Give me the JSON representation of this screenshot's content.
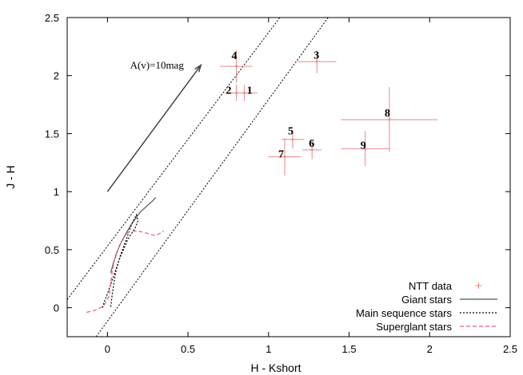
{
  "chart_data": {
    "type": "scatter",
    "title": "",
    "xlabel": "H - Kshort",
    "ylabel": "J - H",
    "xlim": [
      -0.25,
      2.5
    ],
    "ylim": [
      -0.25,
      2.5
    ],
    "x_ticks": [
      "0",
      "0.5",
      "1",
      "1.5",
      "2",
      "2.5"
    ],
    "y_ticks": [
      "0",
      "0.5",
      "1",
      "1.5",
      "2",
      "2.5"
    ],
    "grid": false,
    "legend_position": "bottom-right",
    "legend": [
      {
        "label": "NTT data",
        "style": "marker",
        "color": "#f08080"
      },
      {
        "label": "Giant stars",
        "style": "solid",
        "color": "#555555"
      },
      {
        "label": "Main sequence stars",
        "style": "dotted",
        "color": "#000000"
      },
      {
        "label": "Superglant stars",
        "style": "dashed",
        "color": "#e06080"
      }
    ],
    "points": [
      {
        "label": "1",
        "x": 0.85,
        "y": 1.85,
        "xerr": 0.08,
        "yerr": 0.07
      },
      {
        "label": "2",
        "x": 0.8,
        "y": 1.85,
        "xerr": 0.07,
        "yerr": 0.07
      },
      {
        "label": "3",
        "x": 1.3,
        "y": 2.12,
        "xerr": 0.12,
        "yerr": 0.1
      },
      {
        "label": "4",
        "x": 0.8,
        "y": 2.08,
        "xerr": 0.1,
        "yerr": 0.14
      },
      {
        "label": "5",
        "x": 1.15,
        "y": 1.45,
        "xerr": 0.07,
        "yerr": 0.08
      },
      {
        "label": "6",
        "x": 1.27,
        "y": 1.36,
        "xerr": 0.06,
        "yerr": 0.08
      },
      {
        "label": "7",
        "x": 1.1,
        "y": 1.3,
        "xerr": 0.1,
        "yerr": 0.16
      },
      {
        "label": "8",
        "x": 1.75,
        "y": 1.62,
        "xerr": 0.3,
        "yerr": 0.28
      },
      {
        "label": "9",
        "x": 1.6,
        "y": 1.37,
        "xerr": 0.15,
        "yerr": 0.15
      }
    ],
    "reddening_band": [
      {
        "from": [
          -0.25,
          0.07
        ],
        "to": [
          1.07,
          2.5
        ]
      },
      {
        "from": [
          -0.07,
          -0.25
        ],
        "to": [
          1.37,
          2.5
        ]
      }
    ],
    "reddening_vector": {
      "label": "A(v)=10mag",
      "from": [
        0.0,
        1.0
      ],
      "to": [
        0.58,
        2.09
      ]
    },
    "series": [
      {
        "name": "Giant stars",
        "style": "solid",
        "color": "#555555",
        "x": [
          0.02,
          0.04,
          0.06,
          0.08,
          0.1,
          0.12,
          0.14,
          0.17,
          0.2,
          0.24,
          0.28,
          0.3
        ],
        "y": [
          0.3,
          0.4,
          0.48,
          0.55,
          0.6,
          0.65,
          0.7,
          0.76,
          0.82,
          0.87,
          0.92,
          0.95
        ]
      },
      {
        "name": "Main sequence stars",
        "style": "dotted",
        "color": "#000000",
        "x": [
          -0.03,
          -0.02,
          0.0,
          0.02,
          0.04,
          0.06,
          0.08,
          0.1,
          0.12,
          0.14,
          0.17,
          0.19,
          0.18,
          0.15,
          0.12,
          0.08,
          0.05,
          0.03,
          0.02
        ],
        "y": [
          0.0,
          0.05,
          0.12,
          0.2,
          0.28,
          0.36,
          0.44,
          0.5,
          0.57,
          0.62,
          0.68,
          0.75,
          0.8,
          0.72,
          0.6,
          0.45,
          0.3,
          0.12,
          0.0
        ]
      },
      {
        "name": "Superglant stars",
        "style": "dashed",
        "color": "#e06080",
        "x": [
          -0.13,
          -0.07,
          -0.02,
          0.01,
          0.02,
          0.03,
          0.05,
          0.08,
          0.11,
          0.14,
          0.19,
          0.25,
          0.3,
          0.35
        ],
        "y": [
          -0.04,
          -0.02,
          0.02,
          0.1,
          0.2,
          0.32,
          0.45,
          0.55,
          0.63,
          0.66,
          0.66,
          0.64,
          0.62,
          0.66
        ]
      }
    ]
  }
}
